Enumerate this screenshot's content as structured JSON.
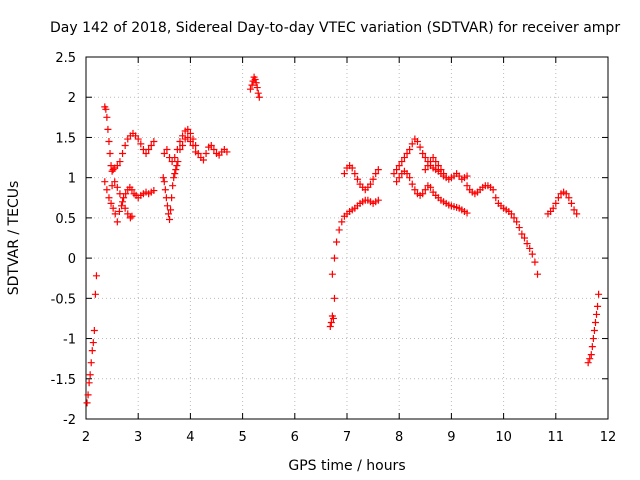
{
  "chart_data": {
    "type": "scatter",
    "title": "Day 142 of 2018, Sidereal Day-to-day VTEC variation (SDTVAR) for receiver ampr",
    "xlabel": "GPS time / hours",
    "ylabel": "SDTVAR / TECUs",
    "xlim": [
      2,
      12
    ],
    "ylim": [
      -2,
      2.5
    ],
    "xticks": [
      2,
      3,
      4,
      5,
      6,
      7,
      8,
      9,
      10,
      11,
      12
    ],
    "yticks": [
      -2,
      -1.5,
      -1,
      -0.5,
      0,
      0.5,
      1,
      1.5,
      2,
      2.5
    ],
    "ytick_labels": [
      "-2",
      "-1.5",
      "-1",
      "-0.5",
      "0",
      "0.5",
      "1",
      "1.5",
      "2",
      "2.5"
    ],
    "grid": true,
    "marker": "+",
    "color": "#ff0000",
    "series": [
      {
        "name": "seg-early-neg",
        "x": [
          2.02,
          2.04,
          2.06,
          2.08,
          2.1,
          2.12,
          2.14,
          2.16,
          2.18,
          2.2
        ],
        "y": [
          -1.8,
          -1.7,
          -1.55,
          -1.45,
          -1.3,
          -1.15,
          -1.05,
          -0.9,
          -0.45,
          -0.22
        ]
      },
      {
        "name": "seg-a",
        "x": [
          2.36,
          2.38,
          2.4,
          2.42,
          2.44,
          2.46,
          2.48,
          2.5,
          2.52,
          2.55,
          2.6,
          2.65,
          2.7,
          2.75,
          2.8,
          2.85,
          2.9,
          2.95,
          3.0,
          3.05,
          3.1,
          3.15,
          3.2,
          3.25,
          3.3
        ],
        "y": [
          1.88,
          1.85,
          1.75,
          1.6,
          1.45,
          1.3,
          1.15,
          1.08,
          1.1,
          1.12,
          1.15,
          1.2,
          1.3,
          1.4,
          1.48,
          1.52,
          1.55,
          1.52,
          1.48,
          1.42,
          1.35,
          1.3,
          1.35,
          1.4,
          1.45
        ]
      },
      {
        "name": "seg-b",
        "x": [
          2.36,
          2.4,
          2.44,
          2.48,
          2.52,
          2.56,
          2.6,
          2.64,
          2.68,
          2.72,
          2.76,
          2.8,
          2.84,
          2.88,
          2.92,
          2.96,
          3.0,
          3.05,
          3.1,
          3.15,
          3.2,
          3.25,
          3.3
        ],
        "y": [
          0.95,
          0.85,
          0.75,
          0.68,
          0.62,
          0.55,
          0.45,
          0.58,
          0.65,
          0.75,
          0.8,
          0.85,
          0.88,
          0.85,
          0.8,
          0.78,
          0.75,
          0.78,
          0.8,
          0.82,
          0.8,
          0.82,
          0.84
        ]
      },
      {
        "name": "seg-c",
        "x": [
          2.5,
          2.55,
          2.6,
          2.65,
          2.7,
          2.75,
          2.8,
          2.85,
          2.88
        ],
        "y": [
          0.9,
          0.95,
          0.88,
          0.8,
          0.7,
          0.62,
          0.55,
          0.5,
          0.52
        ]
      },
      {
        "name": "seg-d",
        "x": [
          3.48,
          3.5,
          3.52,
          3.54,
          3.56,
          3.58,
          3.6,
          3.62,
          3.64,
          3.66,
          3.68,
          3.7,
          3.72,
          3.74,
          3.76
        ],
        "y": [
          1.0,
          0.95,
          0.85,
          0.75,
          0.65,
          0.55,
          0.48,
          0.6,
          0.75,
          0.9,
          1.0,
          1.05,
          1.1,
          1.15,
          1.2
        ]
      },
      {
        "name": "seg-e",
        "x": [
          3.5,
          3.55,
          3.6,
          3.65,
          3.7,
          3.75,
          3.8,
          3.85,
          3.9,
          3.95,
          4.0,
          4.05,
          4.1,
          4.15,
          4.2,
          4.25,
          4.3,
          4.35,
          4.4,
          4.45,
          4.5,
          4.55,
          4.6,
          4.65,
          4.7
        ],
        "y": [
          1.3,
          1.35,
          1.25,
          1.2,
          1.25,
          1.35,
          1.45,
          1.52,
          1.58,
          1.6,
          1.55,
          1.48,
          1.4,
          1.3,
          1.25,
          1.22,
          1.3,
          1.38,
          1.4,
          1.35,
          1.3,
          1.28,
          1.32,
          1.35,
          1.32
        ]
      },
      {
        "name": "seg-f",
        "x": [
          3.8,
          3.85,
          3.9,
          3.95,
          4.0,
          4.05,
          4.1
        ],
        "y": [
          1.35,
          1.4,
          1.48,
          1.5,
          1.45,
          1.4,
          1.32
        ]
      },
      {
        "name": "seg-g",
        "x": [
          5.15,
          5.18,
          5.2,
          5.22,
          5.24,
          5.26,
          5.28,
          5.3,
          5.32
        ],
        "y": [
          2.1,
          2.15,
          2.2,
          2.25,
          2.22,
          2.18,
          2.12,
          2.05,
          2.0
        ]
      },
      {
        "name": "seg-h",
        "x": [
          6.68,
          6.7,
          6.72,
          6.74,
          6.76
        ],
        "y": [
          -0.85,
          -0.8,
          -0.72,
          -0.75,
          -0.5
        ]
      },
      {
        "name": "seg-i",
        "x": [
          6.72,
          6.76,
          6.8,
          6.85,
          6.9,
          6.95,
          7.0,
          7.05,
          7.1,
          7.15,
          7.2,
          7.25,
          7.3,
          7.35,
          7.4,
          7.45,
          7.5,
          7.55,
          7.6
        ],
        "y": [
          -0.2,
          0.0,
          0.2,
          0.35,
          0.45,
          0.52,
          0.55,
          0.58,
          0.6,
          0.62,
          0.65,
          0.68,
          0.7,
          0.72,
          0.72,
          0.7,
          0.68,
          0.7,
          0.72
        ]
      },
      {
        "name": "seg-j",
        "x": [
          6.95,
          7.0,
          7.05,
          7.1,
          7.15,
          7.2,
          7.25,
          7.3,
          7.35,
          7.4,
          7.45,
          7.5,
          7.55,
          7.6
        ],
        "y": [
          1.05,
          1.12,
          1.15,
          1.12,
          1.05,
          0.98,
          0.92,
          0.88,
          0.85,
          0.88,
          0.92,
          0.98,
          1.05,
          1.1
        ]
      },
      {
        "name": "seg-k",
        "x": [
          7.9,
          7.95,
          8.0,
          8.05,
          8.1,
          8.15,
          8.2,
          8.25,
          8.3,
          8.35,
          8.4,
          8.45,
          8.5,
          8.55,
          8.6,
          8.65,
          8.7,
          8.75,
          8.8,
          8.85,
          8.9,
          8.95,
          9.0,
          9.05,
          9.1,
          9.15,
          9.2,
          9.25,
          9.3
        ],
        "y": [
          1.05,
          1.1,
          1.15,
          1.2,
          1.25,
          1.3,
          1.35,
          1.42,
          1.48,
          1.45,
          1.38,
          1.3,
          1.25,
          1.2,
          1.15,
          1.12,
          1.1,
          1.08,
          1.05,
          1.02,
          1.0,
          0.98,
          1.0,
          1.02,
          1.05,
          1.02,
          0.98,
          1.0,
          1.02
        ]
      },
      {
        "name": "seg-l",
        "x": [
          7.95,
          8.0,
          8.05,
          8.1,
          8.15,
          8.2,
          8.25,
          8.3,
          8.35,
          8.4,
          8.45,
          8.5,
          8.55,
          8.6,
          8.65,
          8.7,
          8.75,
          8.8,
          8.85,
          8.9,
          8.95,
          9.0,
          9.05,
          9.1,
          9.15,
          9.2,
          9.25,
          9.3
        ],
        "y": [
          0.95,
          1.0,
          1.05,
          1.08,
          1.05,
          1.0,
          0.92,
          0.85,
          0.8,
          0.78,
          0.8,
          0.85,
          0.9,
          0.88,
          0.82,
          0.78,
          0.75,
          0.72,
          0.7,
          0.68,
          0.66,
          0.65,
          0.64,
          0.63,
          0.62,
          0.6,
          0.58,
          0.56
        ]
      },
      {
        "name": "seg-m",
        "x": [
          8.5,
          8.55,
          8.6,
          8.65,
          8.7,
          8.75,
          8.8,
          8.85
        ],
        "y": [
          1.1,
          1.15,
          1.2,
          1.25,
          1.2,
          1.15,
          1.1,
          1.05
        ]
      },
      {
        "name": "seg-n",
        "x": [
          9.3,
          9.35,
          9.4,
          9.45,
          9.5,
          9.55,
          9.6,
          9.65,
          9.7,
          9.75,
          9.8,
          9.85,
          9.9,
          9.95,
          10.0,
          10.05,
          10.1,
          10.15,
          10.2,
          10.25,
          10.3,
          10.35,
          10.4,
          10.45,
          10.5,
          10.55,
          10.6,
          10.65
        ],
        "y": [
          0.9,
          0.85,
          0.82,
          0.8,
          0.82,
          0.85,
          0.88,
          0.9,
          0.9,
          0.88,
          0.85,
          0.75,
          0.68,
          0.65,
          0.62,
          0.6,
          0.58,
          0.55,
          0.5,
          0.45,
          0.38,
          0.3,
          0.25,
          0.18,
          0.12,
          0.05,
          -0.05,
          -0.2
        ]
      },
      {
        "name": "seg-o",
        "x": [
          10.85,
          10.9,
          10.95,
          11.0,
          11.05,
          11.1,
          11.15,
          11.2,
          11.25,
          11.3,
          11.35,
          11.4
        ],
        "y": [
          0.55,
          0.58,
          0.62,
          0.68,
          0.75,
          0.8,
          0.82,
          0.8,
          0.75,
          0.68,
          0.6,
          0.55
        ]
      },
      {
        "name": "seg-late-neg",
        "x": [
          11.62,
          11.65,
          11.68,
          11.7,
          11.72,
          11.74,
          11.76,
          11.78,
          11.8,
          11.82
        ],
        "y": [
          -1.3,
          -1.25,
          -1.2,
          -1.1,
          -1.0,
          -0.9,
          -0.8,
          -0.7,
          -0.6,
          -0.45
        ]
      }
    ]
  }
}
